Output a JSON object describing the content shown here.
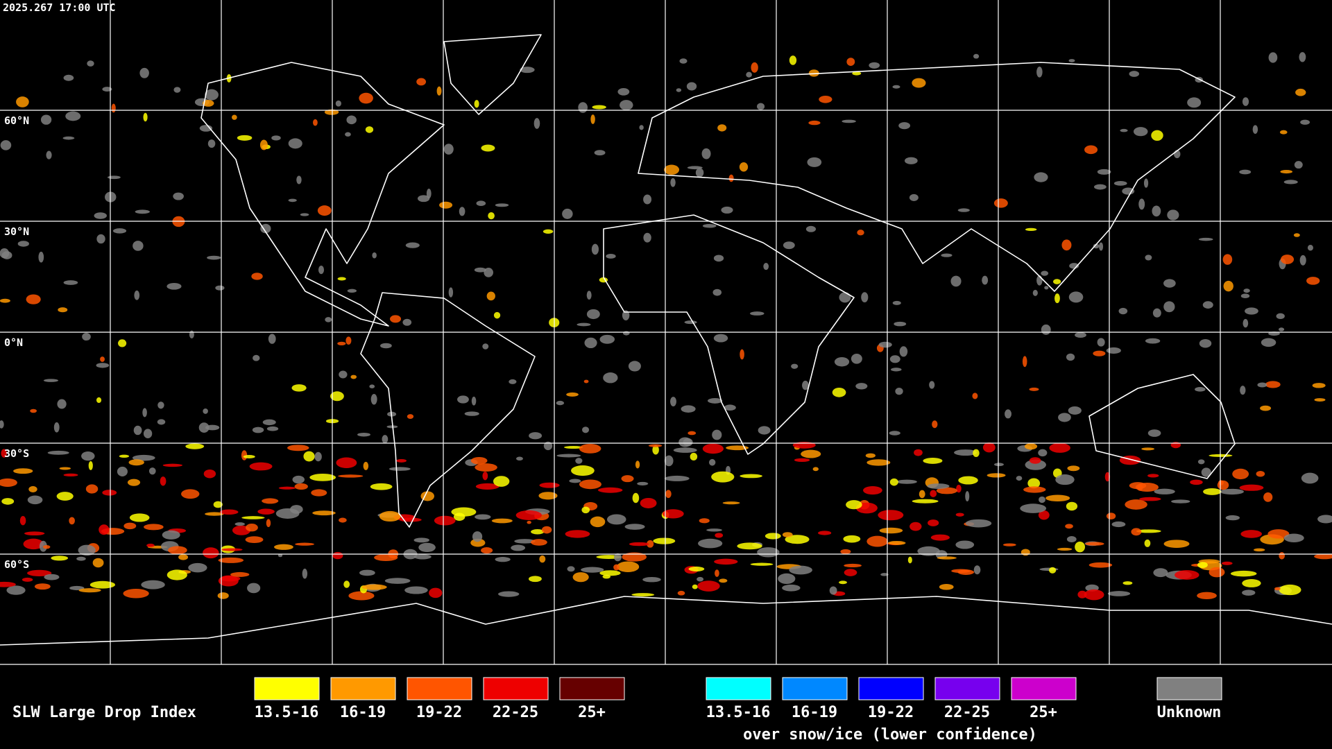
{
  "timestamp": "2025.267 17:00 UTC",
  "latitude_labels": [
    "60°N",
    "30°N",
    "0°N",
    "30°S",
    "60°S"
  ],
  "legend": {
    "title": "SLW Large Drop Index",
    "groups": [
      {
        "items": [
          {
            "label": "13.5-16",
            "color": "#ffff00"
          },
          {
            "label": "16-19",
            "color": "#ff9900"
          },
          {
            "label": "19-22",
            "color": "#ff5500"
          },
          {
            "label": "22-25",
            "color": "#ee0000"
          },
          {
            "label": "25+",
            "color": "#660000"
          }
        ]
      },
      {
        "items": [
          {
            "label": "13.5-16",
            "color": "#00ffff"
          },
          {
            "label": "16-19",
            "color": "#0088ff"
          },
          {
            "label": "19-22",
            "color": "#0000ff"
          },
          {
            "label": "22-25",
            "color": "#7700ee"
          },
          {
            "label": "25+",
            "color": "#cc00cc"
          }
        ],
        "note": "over snow/ice (lower confidence)"
      }
    ],
    "unknown": {
      "label": "Unknown",
      "color": "#808080"
    }
  }
}
